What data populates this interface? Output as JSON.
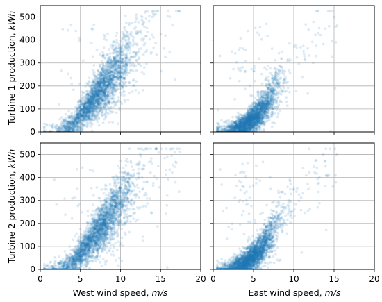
{
  "chart_data": {
    "type": "scatter",
    "layout": "2x2 grid, shared x within columns, shared y within rows",
    "grid": true,
    "marker_color": "#1f77b4",
    "marker_alpha": 0.15,
    "xlim": [
      0,
      20
    ],
    "ylim": [
      0,
      550
    ],
    "xticks": [
      "0",
      "5",
      "10",
      "15",
      "20"
    ],
    "yticks": [
      "0",
      "100",
      "200",
      "300",
      "400",
      "500"
    ],
    "row_labels": [
      {
        "text": "Turbine 1 production, ",
        "unit": "kWh"
      },
      {
        "text": "Turbine 2 production, ",
        "unit": "kWh"
      }
    ],
    "col_labels": [
      {
        "text": "West wind speed, ",
        "unit": "m/s"
      },
      {
        "text": "East wind speed, ",
        "unit": "m/s"
      }
    ],
    "panels": [
      {
        "row": 0,
        "col": 0,
        "x": "West wind speed",
        "y": "Turbine 1 production",
        "profile": {
          "wind_speed": [
            2,
            4,
            6,
            8,
            10,
            12,
            14,
            16,
            18
          ],
          "production": [
            5,
            30,
            110,
            200,
            290,
            380,
            440,
            480,
            500
          ]
        },
        "x_range": [
          0.5,
          17.5
        ],
        "spread": "wide, dense core 5-10 m/s"
      },
      {
        "row": 0,
        "col": 1,
        "x": "East wind speed",
        "y": "Turbine 1 production",
        "profile": {
          "wind_speed": [
            2,
            4,
            6,
            8,
            10,
            12,
            14
          ],
          "production": [
            5,
            30,
            90,
            200,
            290,
            360,
            430
          ]
        },
        "x_range": [
          0.5,
          15.5
        ],
        "spread": "dense core 3-8 m/s"
      },
      {
        "row": 1,
        "col": 0,
        "x": "West wind speed",
        "y": "Turbine 2 production",
        "profile": {
          "wind_speed": [
            2,
            4,
            6,
            8,
            10,
            12,
            14,
            16,
            18
          ],
          "production": [
            5,
            30,
            110,
            200,
            290,
            380,
            440,
            480,
            500
          ]
        },
        "x_range": [
          0.5,
          17.5
        ],
        "spread": "wide, dense core 5-10 m/s"
      },
      {
        "row": 1,
        "col": 1,
        "x": "East wind speed",
        "y": "Turbine 2 production",
        "profile": {
          "wind_speed": [
            2,
            4,
            6,
            8,
            10,
            12,
            14
          ],
          "production": [
            5,
            30,
            90,
            200,
            290,
            360,
            430
          ]
        },
        "x_range": [
          0.5,
          15.5
        ],
        "spread": "dense core 3-8 m/s"
      }
    ]
  }
}
